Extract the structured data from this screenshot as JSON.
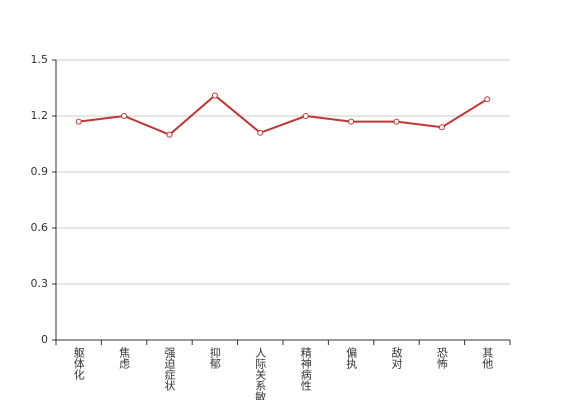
{
  "chart_data": {
    "type": "line",
    "categories": [
      "躯体化",
      "焦虑",
      "强迫症状",
      "抑郁",
      "人际关系敏感",
      "精神病性",
      "偏执",
      "敌对",
      "恐怖",
      "其他"
    ],
    "series": [
      {
        "color": "#c23531",
        "values": [
          1.17,
          1.2,
          1.1,
          1.31,
          1.11,
          1.2,
          1.17,
          1.17,
          1.14,
          1.29
        ]
      }
    ],
    "ylim": [
      0,
      1.5
    ],
    "yticks": [
      0,
      0.3,
      0.6,
      0.9,
      1.2,
      1.5
    ],
    "grid": true
  }
}
